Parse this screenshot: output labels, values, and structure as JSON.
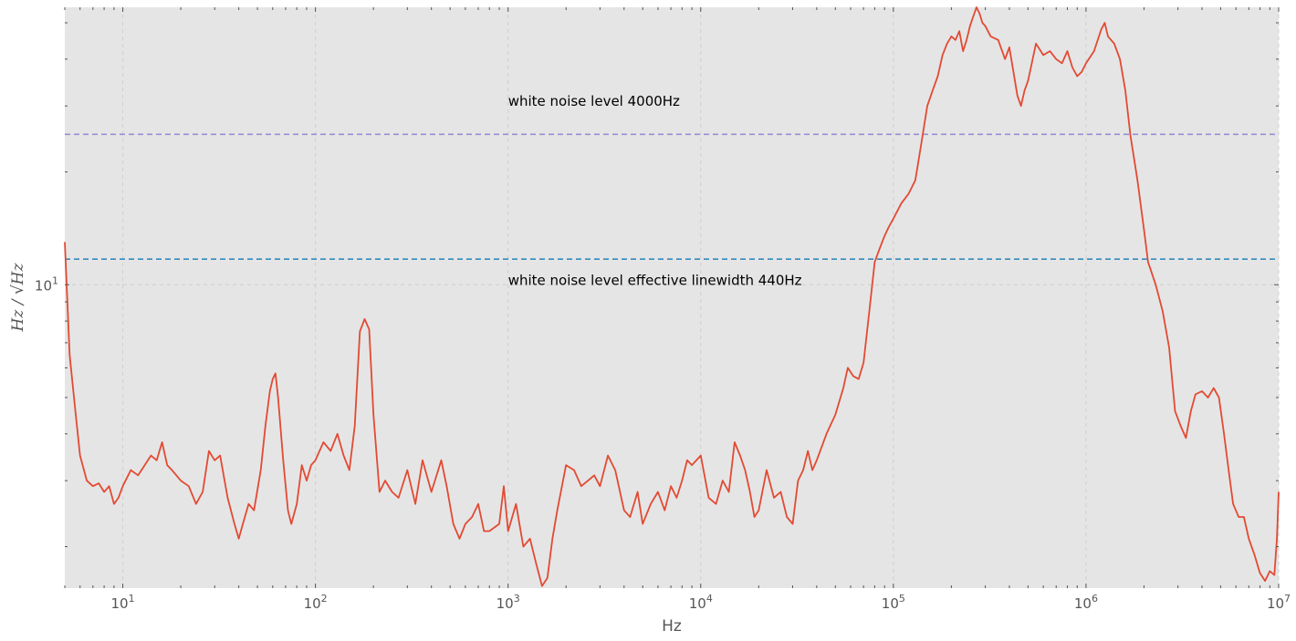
{
  "chart_data": {
    "type": "line",
    "xscale": "log",
    "yscale": "log",
    "xlabel": "Hz",
    "ylabel": "Hz / √Hz",
    "xlim": [
      5,
      10000000
    ],
    "ylim": [
      1.55,
      55
    ],
    "x_tick_labels": [
      {
        "value": 10,
        "base": "10",
        "exp": "1"
      },
      {
        "value": 100,
        "base": "10",
        "exp": "2"
      },
      {
        "value": 1000,
        "base": "10",
        "exp": "3"
      },
      {
        "value": 10000,
        "base": "10",
        "exp": "4"
      },
      {
        "value": 100000,
        "base": "10",
        "exp": "5"
      },
      {
        "value": 1000000,
        "base": "10",
        "exp": "6"
      },
      {
        "value": 10000000,
        "base": "10",
        "exp": "7"
      }
    ],
    "y_tick_labels": [
      {
        "value": 10,
        "base": "10",
        "exp": "1"
      }
    ],
    "grid": true,
    "background": "#e5e5e5",
    "hlines": [
      {
        "y": 25.2,
        "color": "#988ed5",
        "style": "dashed"
      },
      {
        "y": 11.7,
        "color": "#348abd",
        "style": "dashed"
      }
    ],
    "annotations": [
      {
        "text": "white noise level 4000Hz",
        "x": 1000,
        "y": 30
      },
      {
        "text": "white noise level effective linewidth 440Hz",
        "x": 1000,
        "y": 10
      }
    ],
    "series": [
      {
        "color": "#e24a33",
        "points": [
          [
            5,
            13
          ],
          [
            5.3,
            6.5
          ],
          [
            5.7,
            4.5
          ],
          [
            6,
            3.5
          ],
          [
            6.5,
            3.0
          ],
          [
            7,
            2.9
          ],
          [
            7.5,
            2.95
          ],
          [
            8,
            2.8
          ],
          [
            8.5,
            2.9
          ],
          [
            9,
            2.6
          ],
          [
            9.5,
            2.7
          ],
          [
            10,
            2.9
          ],
          [
            11,
            3.2
          ],
          [
            12,
            3.1
          ],
          [
            13,
            3.3
          ],
          [
            14,
            3.5
          ],
          [
            15,
            3.4
          ],
          [
            16,
            3.8
          ],
          [
            17,
            3.3
          ],
          [
            18,
            3.2
          ],
          [
            20,
            3.0
          ],
          [
            22,
            2.9
          ],
          [
            24,
            2.6
          ],
          [
            26,
            2.8
          ],
          [
            28,
            3.6
          ],
          [
            30,
            3.4
          ],
          [
            32,
            3.5
          ],
          [
            35,
            2.7
          ],
          [
            38,
            2.3
          ],
          [
            40,
            2.1
          ],
          [
            42,
            2.3
          ],
          [
            45,
            2.6
          ],
          [
            48,
            2.5
          ],
          [
            52,
            3.2
          ],
          [
            55,
            4.2
          ],
          [
            58,
            5.2
          ],
          [
            60,
            5.6
          ],
          [
            62,
            5.8
          ],
          [
            64,
            5.0
          ],
          [
            68,
            3.4
          ],
          [
            72,
            2.5
          ],
          [
            75,
            2.3
          ],
          [
            80,
            2.6
          ],
          [
            85,
            3.3
          ],
          [
            90,
            3.0
          ],
          [
            95,
            3.3
          ],
          [
            100,
            3.4
          ],
          [
            110,
            3.8
          ],
          [
            120,
            3.6
          ],
          [
            130,
            4.0
          ],
          [
            140,
            3.5
          ],
          [
            150,
            3.2
          ],
          [
            160,
            4.2
          ],
          [
            170,
            7.5
          ],
          [
            180,
            8.1
          ],
          [
            190,
            7.6
          ],
          [
            200,
            4.5
          ],
          [
            215,
            2.8
          ],
          [
            230,
            3.0
          ],
          [
            250,
            2.8
          ],
          [
            270,
            2.7
          ],
          [
            300,
            3.2
          ],
          [
            330,
            2.6
          ],
          [
            360,
            3.4
          ],
          [
            400,
            2.8
          ],
          [
            450,
            3.4
          ],
          [
            480,
            2.9
          ],
          [
            520,
            2.3
          ],
          [
            560,
            2.1
          ],
          [
            600,
            2.3
          ],
          [
            650,
            2.4
          ],
          [
            700,
            2.6
          ],
          [
            750,
            2.2
          ],
          [
            800,
            2.2
          ],
          [
            900,
            2.3
          ],
          [
            950,
            2.9
          ],
          [
            1000,
            2.2
          ],
          [
            1100,
            2.6
          ],
          [
            1200,
            2.0
          ],
          [
            1300,
            2.1
          ],
          [
            1400,
            1.8
          ],
          [
            1500,
            1.57
          ],
          [
            1600,
            1.65
          ],
          [
            1700,
            2.1
          ],
          [
            1800,
            2.5
          ],
          [
            2000,
            3.3
          ],
          [
            2200,
            3.2
          ],
          [
            2400,
            2.9
          ],
          [
            2600,
            3.0
          ],
          [
            2800,
            3.1
          ],
          [
            3000,
            2.9
          ],
          [
            3300,
            3.5
          ],
          [
            3600,
            3.2
          ],
          [
            4000,
            2.5
          ],
          [
            4300,
            2.4
          ],
          [
            4700,
            2.8
          ],
          [
            5000,
            2.3
          ],
          [
            5500,
            2.6
          ],
          [
            6000,
            2.8
          ],
          [
            6500,
            2.5
          ],
          [
            7000,
            2.9
          ],
          [
            7500,
            2.7
          ],
          [
            8000,
            3.0
          ],
          [
            8500,
            3.4
          ],
          [
            9000,
            3.3
          ],
          [
            10000,
            3.5
          ],
          [
            11000,
            2.7
          ],
          [
            12000,
            2.6
          ],
          [
            13000,
            3.0
          ],
          [
            14000,
            2.8
          ],
          [
            15000,
            3.8
          ],
          [
            16000,
            3.5
          ],
          [
            17000,
            3.2
          ],
          [
            18000,
            2.8
          ],
          [
            19000,
            2.4
          ],
          [
            20000,
            2.5
          ],
          [
            22000,
            3.2
          ],
          [
            24000,
            2.7
          ],
          [
            26000,
            2.8
          ],
          [
            28000,
            2.4
          ],
          [
            30000,
            2.3
          ],
          [
            32000,
            3.0
          ],
          [
            34000,
            3.2
          ],
          [
            36000,
            3.6
          ],
          [
            38000,
            3.2
          ],
          [
            40000,
            3.4
          ],
          [
            45000,
            4.0
          ],
          [
            50000,
            4.5
          ],
          [
            55000,
            5.3
          ],
          [
            58000,
            6.0
          ],
          [
            62000,
            5.7
          ],
          [
            66000,
            5.6
          ],
          [
            70000,
            6.2
          ],
          [
            75000,
            8.5
          ],
          [
            80000,
            11.5
          ],
          [
            85000,
            12.5
          ],
          [
            90000,
            13.5
          ],
          [
            95000,
            14.3
          ],
          [
            100000,
            15.0
          ],
          [
            110000,
            16.5
          ],
          [
            120000,
            17.5
          ],
          [
            130000,
            19.0
          ],
          [
            140000,
            24.0
          ],
          [
            150000,
            30.0
          ],
          [
            160000,
            33.0
          ],
          [
            170000,
            36.0
          ],
          [
            180000,
            41.0
          ],
          [
            190000,
            44.0
          ],
          [
            200000,
            46.0
          ],
          [
            210000,
            45.0
          ],
          [
            220000,
            47.5
          ],
          [
            230000,
            42.0
          ],
          [
            240000,
            45.0
          ],
          [
            250000,
            49.0
          ],
          [
            260000,
            52.0
          ],
          [
            270000,
            55.0
          ],
          [
            280000,
            53.0
          ],
          [
            290000,
            50.0
          ],
          [
            300000,
            49.0
          ],
          [
            320000,
            46.0
          ],
          [
            350000,
            45.0
          ],
          [
            380000,
            40.0
          ],
          [
            400000,
            43.0
          ],
          [
            420000,
            37.0
          ],
          [
            440000,
            32.0
          ],
          [
            460000,
            30.0
          ],
          [
            480000,
            33.0
          ],
          [
            500000,
            35.0
          ],
          [
            550000,
            44.0
          ],
          [
            600000,
            41.0
          ],
          [
            650000,
            42.0
          ],
          [
            700000,
            40.0
          ],
          [
            750000,
            39.0
          ],
          [
            800000,
            42.0
          ],
          [
            850000,
            38.0
          ],
          [
            900000,
            36.0
          ],
          [
            950000,
            37.0
          ],
          [
            1000000,
            39.0
          ],
          [
            1100000,
            42.0
          ],
          [
            1200000,
            48.0
          ],
          [
            1250000,
            50.0
          ],
          [
            1300000,
            46.0
          ],
          [
            1400000,
            44.0
          ],
          [
            1500000,
            40.0
          ],
          [
            1600000,
            33.0
          ],
          [
            1700000,
            25.0
          ],
          [
            1850000,
            19.0
          ],
          [
            2000000,
            14.0
          ],
          [
            2100000,
            11.5
          ],
          [
            2300000,
            10.0
          ],
          [
            2500000,
            8.5
          ],
          [
            2700000,
            6.8
          ],
          [
            2900000,
            4.6
          ],
          [
            3100000,
            4.2
          ],
          [
            3300000,
            3.9
          ],
          [
            3500000,
            4.6
          ],
          [
            3700000,
            5.1
          ],
          [
            4000000,
            5.2
          ],
          [
            4300000,
            5.0
          ],
          [
            4600000,
            5.3
          ],
          [
            4900000,
            5.0
          ],
          [
            5200000,
            4.0
          ],
          [
            5500000,
            3.2
          ],
          [
            5800000,
            2.6
          ],
          [
            6200000,
            2.4
          ],
          [
            6600000,
            2.4
          ],
          [
            7000000,
            2.1
          ],
          [
            7500000,
            1.9
          ],
          [
            8000000,
            1.7
          ],
          [
            8500000,
            1.62
          ],
          [
            9000000,
            1.72
          ],
          [
            9500000,
            1.68
          ],
          [
            9800000,
            2.1
          ],
          [
            10000000,
            2.8
          ]
        ]
      }
    ]
  }
}
